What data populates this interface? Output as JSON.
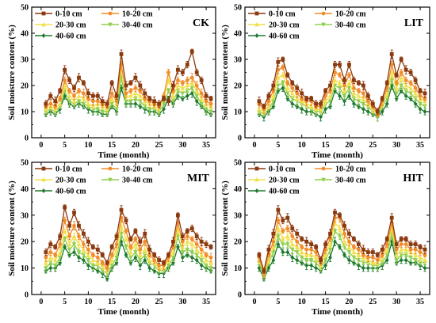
{
  "figure": {
    "x_tick_labels": [
      "0",
      "5",
      "10",
      "15",
      "20",
      "25",
      "30",
      "35"
    ],
    "y_tick_labels": [
      "0",
      "10",
      "20",
      "30",
      "40",
      "50"
    ]
  },
  "chart_data": [
    {
      "type": "line",
      "title": "CK",
      "xlabel": "Time (month)",
      "ylabel": "Soil moisture content (%)",
      "xlim": [
        -2,
        37
      ],
      "ylim": [
        0,
        50
      ],
      "legend": "top-left",
      "x": [
        1,
        2,
        3,
        4,
        5,
        6,
        7,
        8,
        9,
        10,
        11,
        12,
        13,
        14,
        15,
        16,
        17,
        18,
        19,
        20,
        21,
        22,
        23,
        24,
        25,
        26,
        27,
        28,
        29,
        30,
        31,
        32,
        33,
        34,
        35,
        36
      ],
      "series": [
        {
          "name": "0-10 cm",
          "color": "#8B3A0F",
          "marker": "square",
          "values": [
            13,
            16,
            14,
            18,
            26,
            22,
            19,
            23,
            21,
            17,
            16,
            16,
            14,
            13,
            21,
            16,
            32,
            20,
            21,
            23,
            20,
            17,
            15,
            14,
            13,
            15,
            14,
            20,
            26,
            25,
            28,
            33,
            25,
            22,
            16,
            15
          ]
        },
        {
          "name": "10-20 cm",
          "color": "#F28C28",
          "marker": "circle",
          "values": [
            12,
            13,
            12,
            15,
            22,
            18,
            16,
            18,
            17,
            15,
            14,
            14,
            13,
            12,
            17,
            14,
            28,
            17,
            18,
            19,
            18,
            15,
            14,
            13,
            12,
            16,
            25,
            18,
            22,
            21,
            22,
            23,
            20,
            17,
            14,
            13
          ]
        },
        {
          "name": "20-30 cm",
          "color": "#F2E04A",
          "marker": "triangle",
          "values": [
            11,
            12,
            11,
            13,
            20,
            16,
            14,
            16,
            15,
            13,
            12,
            13,
            12,
            11,
            15,
            13,
            26,
            16,
            16,
            17,
            16,
            14,
            13,
            12,
            11,
            15,
            22,
            16,
            20,
            19,
            20,
            21,
            18,
            15,
            13,
            12
          ]
        },
        {
          "name": "30-40 cm",
          "color": "#8FCF4F",
          "marker": "triangle-down",
          "values": [
            10,
            11,
            10,
            12,
            18,
            14,
            13,
            14,
            13,
            12,
            11,
            11,
            10,
            10,
            13,
            11,
            23,
            14,
            14,
            15,
            14,
            12,
            11,
            11,
            10,
            13,
            18,
            14,
            18,
            17,
            18,
            19,
            16,
            13,
            11,
            10
          ]
        },
        {
          "name": "40-60 cm",
          "color": "#1E7A2E",
          "marker": "diamond",
          "values": [
            9,
            10,
            9,
            11,
            16,
            13,
            12,
            13,
            12,
            11,
            10,
            10,
            9,
            9,
            12,
            10,
            19,
            13,
            13,
            13,
            12,
            11,
            10,
            10,
            9,
            11,
            15,
            13,
            16,
            15,
            16,
            17,
            14,
            12,
            10,
            9
          ]
        }
      ]
    },
    {
      "type": "line",
      "title": "LIT",
      "xlabel": "Time (month)",
      "ylabel": "Soil moisture content (%)",
      "xlim": [
        -2,
        37
      ],
      "ylim": [
        0,
        50
      ],
      "legend": "top-left",
      "x": [
        1,
        2,
        3,
        4,
        5,
        6,
        7,
        8,
        9,
        10,
        11,
        12,
        13,
        14,
        15,
        16,
        17,
        18,
        19,
        20,
        21,
        22,
        23,
        24,
        25,
        26,
        27,
        28,
        29,
        30,
        31,
        32,
        33,
        34,
        35,
        36
      ],
      "series": [
        {
          "name": "0-10 cm",
          "color": "#8B3A0F",
          "marker": "square",
          "values": [
            14,
            12,
            16,
            20,
            29,
            30,
            24,
            21,
            19,
            17,
            15,
            15,
            13,
            13,
            18,
            20,
            28,
            28,
            22,
            28,
            22,
            21,
            20,
            16,
            13,
            10,
            15,
            21,
            32,
            24,
            30,
            26,
            25,
            22,
            18,
            17
          ]
        },
        {
          "name": "10-20 cm",
          "color": "#F28C28",
          "marker": "circle",
          "values": [
            13,
            11,
            14,
            18,
            26,
            27,
            21,
            19,
            17,
            15,
            14,
            14,
            12,
            12,
            16,
            18,
            25,
            24,
            20,
            24,
            19,
            18,
            17,
            14,
            12,
            9,
            14,
            19,
            28,
            21,
            25,
            22,
            21,
            19,
            16,
            15
          ]
        },
        {
          "name": "20-30 cm",
          "color": "#F2E04A",
          "marker": "triangle",
          "values": [
            11,
            10,
            12,
            16,
            23,
            24,
            19,
            17,
            15,
            14,
            13,
            12,
            11,
            11,
            14,
            16,
            22,
            21,
            18,
            21,
            17,
            16,
            15,
            13,
            11,
            9,
            13,
            17,
            25,
            19,
            23,
            20,
            19,
            17,
            15,
            14
          ]
        },
        {
          "name": "30-40 cm",
          "color": "#8FCF4F",
          "marker": "triangle-down",
          "values": [
            10,
            9,
            11,
            14,
            20,
            21,
            17,
            15,
            14,
            13,
            12,
            11,
            10,
            10,
            13,
            14,
            20,
            19,
            16,
            19,
            15,
            14,
            13,
            12,
            10,
            8,
            12,
            15,
            22,
            17,
            20,
            18,
            17,
            15,
            13,
            12
          ]
        },
        {
          "name": "40-60 cm",
          "color": "#1E7A2E",
          "marker": "diamond",
          "values": [
            9,
            8,
            10,
            12,
            18,
            19,
            15,
            13,
            12,
            11,
            10,
            10,
            9,
            8,
            11,
            12,
            18,
            16,
            14,
            16,
            13,
            12,
            11,
            10,
            9,
            8,
            10,
            13,
            20,
            15,
            18,
            16,
            15,
            13,
            11,
            10
          ]
        }
      ]
    },
    {
      "type": "line",
      "title": "MIT",
      "xlabel": "Time (month)",
      "ylabel": "Soil moisture content (%)",
      "xlim": [
        -2,
        37
      ],
      "ylim": [
        0,
        50
      ],
      "legend": "top-left",
      "x": [
        1,
        2,
        3,
        4,
        5,
        6,
        7,
        8,
        9,
        10,
        11,
        12,
        13,
        14,
        15,
        16,
        17,
        18,
        19,
        20,
        21,
        22,
        23,
        24,
        25,
        26,
        27,
        28,
        29,
        30,
        31,
        32,
        33,
        34,
        35,
        36
      ],
      "series": [
        {
          "name": "0-10 cm",
          "color": "#8B3A0F",
          "marker": "square",
          "values": [
            16,
            19,
            18,
            22,
            33,
            26,
            31,
            26,
            23,
            20,
            18,
            17,
            15,
            12,
            18,
            22,
            32,
            28,
            21,
            24,
            20,
            23,
            17,
            15,
            13,
            12,
            15,
            20,
            30,
            22,
            24,
            25,
            22,
            20,
            19,
            18
          ]
        },
        {
          "name": "10-20 cm",
          "color": "#F28C28",
          "marker": "circle",
          "values": [
            14,
            16,
            15,
            19,
            28,
            22,
            26,
            22,
            19,
            17,
            15,
            14,
            12,
            10,
            15,
            19,
            29,
            24,
            18,
            21,
            17,
            20,
            15,
            13,
            11,
            11,
            14,
            18,
            27,
            20,
            22,
            21,
            19,
            17,
            15,
            14
          ]
        },
        {
          "name": "20-30 cm",
          "color": "#F2E04A",
          "marker": "triangle",
          "values": [
            12,
            14,
            13,
            16,
            24,
            19,
            22,
            19,
            17,
            15,
            13,
            12,
            11,
            9,
            13,
            17,
            26,
            21,
            16,
            19,
            15,
            17,
            13,
            12,
            10,
            10,
            13,
            16,
            25,
            18,
            20,
            19,
            17,
            15,
            13,
            12
          ]
        },
        {
          "name": "30-40 cm",
          "color": "#8FCF4F",
          "marker": "triangle-down",
          "values": [
            10,
            12,
            11,
            14,
            21,
            17,
            19,
            16,
            15,
            13,
            11,
            11,
            9,
            8,
            11,
            14,
            23,
            18,
            14,
            16,
            13,
            15,
            12,
            11,
            9,
            9,
            11,
            14,
            22,
            16,
            17,
            16,
            15,
            13,
            11,
            10
          ]
        },
        {
          "name": "40-60 cm",
          "color": "#1E7A2E",
          "marker": "diamond",
          "values": [
            9,
            10,
            10,
            12,
            18,
            15,
            16,
            14,
            13,
            11,
            10,
            9,
            8,
            6,
            10,
            12,
            20,
            15,
            12,
            14,
            11,
            13,
            10,
            9,
            8,
            8,
            10,
            12,
            18,
            14,
            15,
            14,
            13,
            11,
            10,
            9
          ]
        }
      ]
    },
    {
      "type": "line",
      "title": "HIT",
      "xlabel": "Time (month)",
      "ylabel": "Soil moisture content (%)",
      "xlim": [
        -2,
        37
      ],
      "ylim": [
        0,
        50
      ],
      "legend": "top-left",
      "x": [
        1,
        2,
        3,
        4,
        5,
        6,
        7,
        8,
        9,
        10,
        11,
        12,
        13,
        14,
        15,
        16,
        17,
        18,
        19,
        20,
        21,
        22,
        23,
        24,
        25,
        26,
        27,
        28,
        29,
        30,
        31,
        32,
        33,
        34,
        35,
        36
      ],
      "series": [
        {
          "name": "0-10 cm",
          "color": "#8B3A0F",
          "marker": "square",
          "values": [
            15,
            9,
            17,
            23,
            32,
            28,
            29,
            25,
            23,
            21,
            20,
            19,
            18,
            13,
            19,
            23,
            31,
            30,
            26,
            23,
            21,
            19,
            17,
            16,
            16,
            15,
            17,
            21,
            29,
            19,
            21,
            21,
            19,
            19,
            18,
            17
          ]
        },
        {
          "name": "10-20 cm",
          "color": "#F28C28",
          "marker": "circle",
          "values": [
            14,
            8,
            15,
            20,
            28,
            24,
            25,
            22,
            20,
            18,
            17,
            17,
            16,
            12,
            17,
            21,
            29,
            29,
            23,
            20,
            18,
            17,
            15,
            14,
            14,
            13,
            15,
            19,
            27,
            17,
            19,
            19,
            17,
            17,
            16,
            15
          ]
        },
        {
          "name": "20-30 cm",
          "color": "#F2E04A",
          "marker": "triangle",
          "values": [
            13,
            8,
            13,
            18,
            25,
            21,
            22,
            19,
            18,
            16,
            15,
            15,
            14,
            11,
            15,
            19,
            27,
            25,
            20,
            18,
            16,
            15,
            14,
            13,
            12,
            12,
            14,
            17,
            25,
            15,
            17,
            17,
            16,
            15,
            14,
            13
          ]
        },
        {
          "name": "30-40 cm",
          "color": "#8FCF4F",
          "marker": "triangle-down",
          "values": [
            12,
            7,
            12,
            16,
            22,
            19,
            19,
            17,
            16,
            14,
            13,
            13,
            12,
            10,
            13,
            17,
            24,
            22,
            18,
            16,
            14,
            13,
            12,
            12,
            11,
            11,
            12,
            15,
            23,
            13,
            15,
            15,
            14,
            13,
            12,
            12
          ]
        },
        {
          "name": "40-60 cm",
          "color": "#1E7A2E",
          "marker": "diamond",
          "values": [
            10,
            6,
            10,
            13,
            19,
            16,
            16,
            14,
            13,
            12,
            11,
            11,
            10,
            9,
            11,
            14,
            20,
            18,
            15,
            13,
            12,
            11,
            10,
            10,
            10,
            10,
            11,
            13,
            20,
            12,
            13,
            13,
            12,
            12,
            11,
            10
          ]
        }
      ]
    }
  ]
}
